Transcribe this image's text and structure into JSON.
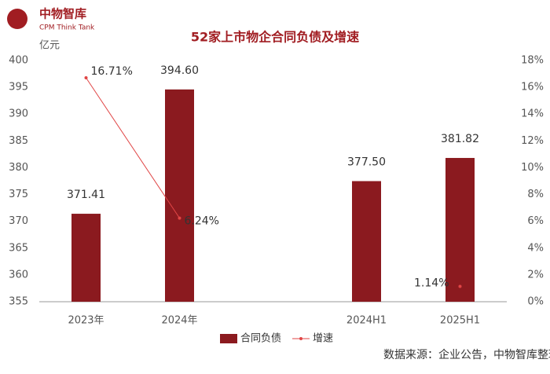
{
  "logo": {
    "name": "中物智库",
    "subtitle": "CPM Think Tank"
  },
  "chart_data": {
    "type": "bar",
    "title": "52家上市物企合同负债及增速",
    "y_label": "亿元",
    "categories": [
      "2023年",
      "2024年",
      null,
      "2024H1",
      "2025H1"
    ],
    "series": [
      {
        "name": "合同负债",
        "color": "#8b1a1f",
        "values": [
          371.41,
          394.6,
          null,
          377.5,
          381.82
        ],
        "value_labels": [
          "371.41",
          "394.60",
          null,
          "377.50",
          "381.82"
        ]
      },
      {
        "name": "增速",
        "type": "line",
        "axis": "y2",
        "color": "#e04545",
        "values": [
          16.71,
          6.24,
          null,
          null,
          1.14
        ],
        "value_labels": [
          "16.71%",
          "6.24%",
          null,
          null,
          "1.14%"
        ]
      }
    ],
    "ylim": [
      355,
      400
    ],
    "yticks": [
      355,
      360,
      365,
      370,
      375,
      380,
      385,
      390,
      395,
      400
    ],
    "y2lim": [
      0,
      18
    ],
    "y2ticks": [
      {
        "value": 0,
        "label": "0%"
      },
      {
        "value": 2,
        "label": "2%"
      },
      {
        "value": 4,
        "label": "4%"
      },
      {
        "value": 6,
        "label": "6%"
      },
      {
        "value": 8,
        "label": "8%"
      },
      {
        "value": 10,
        "label": "10%"
      },
      {
        "value": 12,
        "label": "12%"
      },
      {
        "value": 14,
        "label": "14%"
      },
      {
        "value": 16,
        "label": "16%"
      },
      {
        "value": 18,
        "label": "18%"
      }
    ],
    "legend": "bottom",
    "source": "数据来源：企业公告，中物智库整理"
  }
}
